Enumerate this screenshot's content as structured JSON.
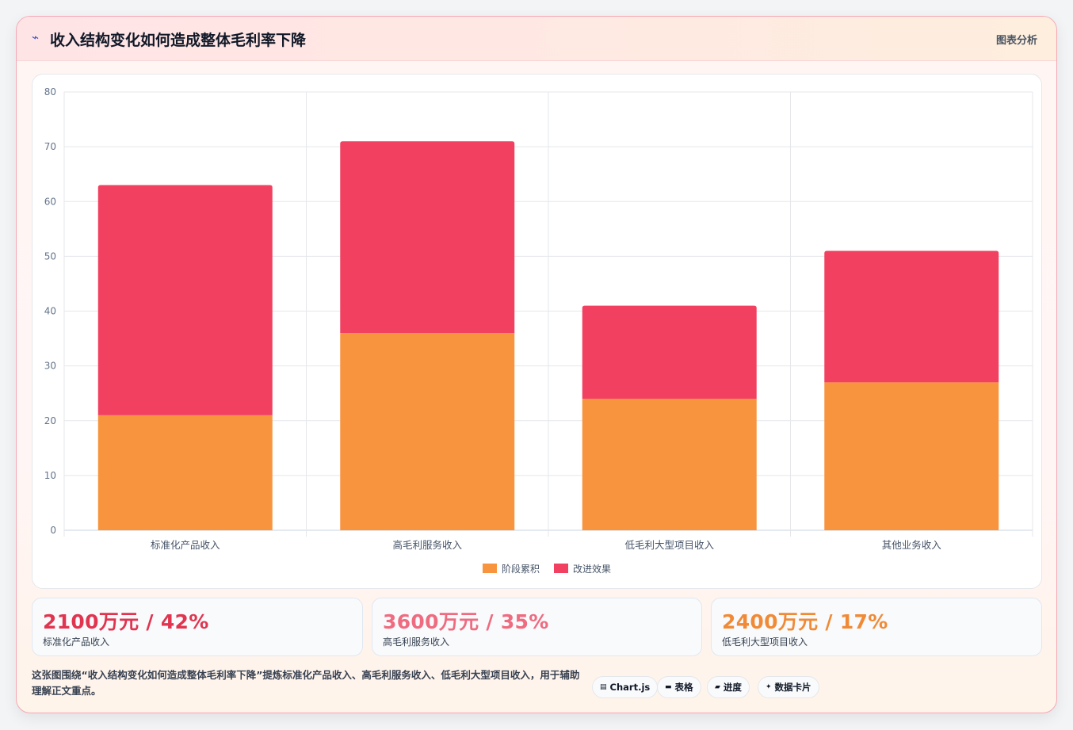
{
  "header": {
    "icon": "lightning-icon",
    "title": "收入结构变化如何造成整体毛利率下降",
    "tag": "图表分析"
  },
  "chart_data": {
    "type": "bar",
    "stacked": true,
    "categories": [
      "标准化产品收入",
      "高毛利服务收入",
      "低毛利大型项目收入",
      "其他业务收入"
    ],
    "series": [
      {
        "name": "阶段累积",
        "color": "#f9943e",
        "values": [
          21,
          36,
          24,
          27
        ]
      },
      {
        "name": "改进效果",
        "color": "#f24060",
        "values": [
          42,
          35,
          17,
          24
        ]
      }
    ],
    "ylim": [
      0,
      80
    ],
    "yticks": [
      0,
      10,
      20,
      30,
      40,
      50,
      60,
      70,
      80
    ],
    "grid": true,
    "legend": "bottom",
    "title": "",
    "xlabel": "",
    "ylabel": ""
  },
  "stats": [
    {
      "value": "2100万元 / 42%",
      "label": "标准化产品收入",
      "color": "#e0344f"
    },
    {
      "value": "3600万元 / 35%",
      "label": "高毛利服务收入",
      "color": "#ee6b80"
    },
    {
      "value": "2400万元 / 17%",
      "label": "低毛利大型项目收入",
      "color": "#f08a36"
    }
  ],
  "footer": {
    "description": "这张图围绕“收入结构变化如何造成整体毛利率下降”提炼标准化产品收入、高毛利服务收入、低毛利大型项目收入，用于辅助理解正文重点。",
    "chips": [
      {
        "icon": "chart-icon",
        "label": "Chart.js"
      },
      {
        "icon": "table-icon",
        "label": "表格"
      },
      {
        "icon": "progress-icon",
        "label": "进度"
      },
      {
        "icon": "sparkle-icon",
        "label": "数据卡片"
      }
    ]
  }
}
